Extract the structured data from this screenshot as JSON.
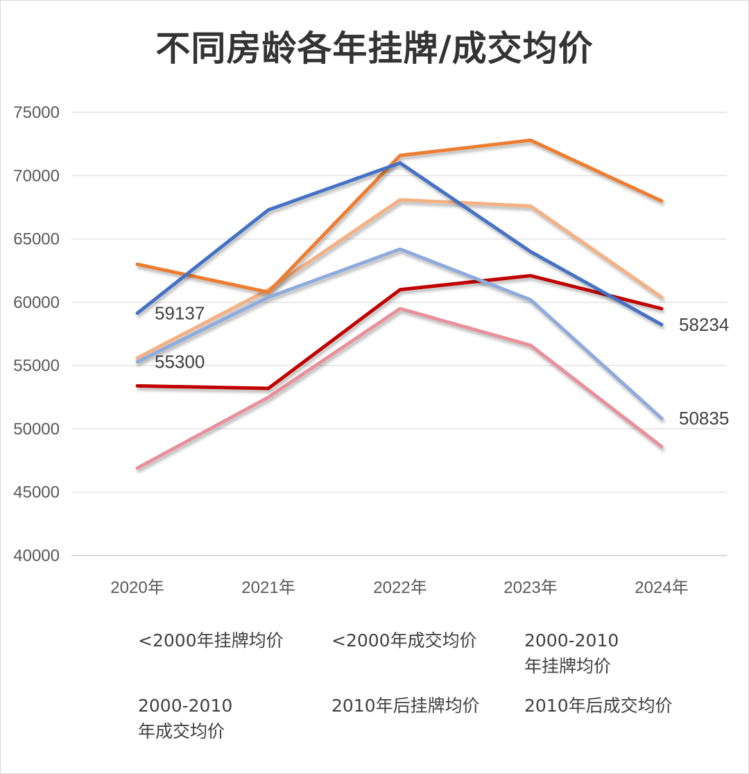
{
  "chart_data": {
    "type": "line",
    "title": "不同房龄各年挂牌/成交均价",
    "categories": [
      "2020年",
      "2021年",
      "2022年",
      "2023年",
      "2024年"
    ],
    "ylim": [
      40000,
      75000
    ],
    "yticks": [
      "40000",
      "45000",
      "50000",
      "55000",
      "60000",
      "65000",
      "70000",
      "75000"
    ],
    "ytick_values": [
      40000,
      45000,
      50000,
      55000,
      60000,
      65000,
      70000,
      75000
    ],
    "grid": true,
    "legend_position": "bottom",
    "series": [
      {
        "name": "<2000年挂牌均价",
        "color": "#4472c4",
        "values": [
          59137,
          67300,
          71000,
          64000,
          58234
        ]
      },
      {
        "name": "<2000年成交均价",
        "color": "#8faadc",
        "values": [
          55300,
          60400,
          64200,
          60200,
          50835
        ]
      },
      {
        "name": "2000-2010\n年挂牌均价",
        "color": "#ed7d31",
        "values": [
          63000,
          60800,
          71600,
          72800,
          68000
        ]
      },
      {
        "name": "2000-2010\n年成交均价",
        "color": "#f4b183",
        "values": [
          55600,
          61000,
          68100,
          67600,
          60400
        ]
      },
      {
        "name": "2010年后挂牌均价",
        "color": "#c00000",
        "values": [
          53400,
          53200,
          61000,
          62100,
          59500
        ]
      },
      {
        "name": "2010年后成交均价",
        "color": "#e8909c",
        "values": [
          46900,
          52500,
          59500,
          56600,
          48600
        ]
      }
    ],
    "data_labels": [
      {
        "series": 0,
        "index": 0,
        "text": "59137"
      },
      {
        "series": 1,
        "index": 0,
        "text": "55300"
      },
      {
        "series": 0,
        "index": 4,
        "text": "58234"
      },
      {
        "series": 1,
        "index": 4,
        "text": "50835"
      }
    ]
  }
}
